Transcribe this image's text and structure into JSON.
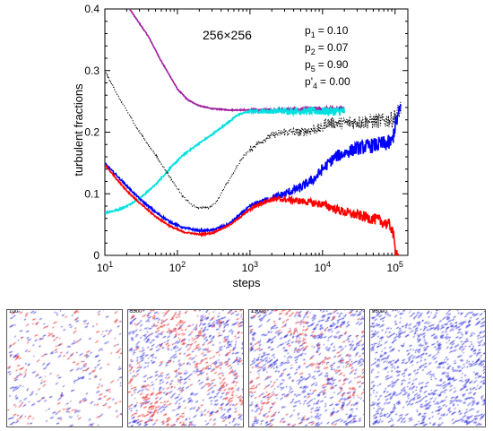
{
  "chart_data": {
    "type": "line",
    "xscale": "log",
    "xlim": [
      10,
      150000
    ],
    "ylim": [
      0,
      0.4
    ],
    "xlabel": "steps",
    "ylabel": "turbulent fractions",
    "x_ticks": [
      {
        "value": 10,
        "base": "10",
        "exp": "1"
      },
      {
        "value": 100,
        "base": "10",
        "exp": "2"
      },
      {
        "value": 1000,
        "base": "10",
        "exp": "3"
      },
      {
        "value": 10000,
        "base": "10",
        "exp": "4"
      },
      {
        "value": 100000,
        "base": "10",
        "exp": "5"
      }
    ],
    "y_ticks": [
      "0",
      "0.1",
      "0.2",
      "0.3",
      "0.4"
    ],
    "annotations": {
      "grid_size": "256×256",
      "params": [
        {
          "sym": "p",
          "sub": "1",
          "prime": "",
          "value": "= 0.10"
        },
        {
          "sym": "p",
          "sub": "2",
          "prime": "",
          "value": "= 0.07"
        },
        {
          "sym": "p",
          "sub": "5",
          "prime": "",
          "value": "= 0.90"
        },
        {
          "sym": "p",
          "sub": "4",
          "prime": "'",
          "value": "= 0.00"
        }
      ]
    },
    "series": [
      {
        "color": "#a020a0",
        "style": "solid",
        "noise": 0.002,
        "end": 20000,
        "x": [
          10,
          15,
          25,
          40,
          60,
          80,
          100,
          140,
          200,
          300,
          500,
          800,
          1500,
          3000,
          6000,
          10000,
          20000
        ],
        "y": [
          0.46,
          0.43,
          0.39,
          0.355,
          0.315,
          0.29,
          0.27,
          0.252,
          0.243,
          0.238,
          0.236,
          0.236,
          0.236,
          0.236,
          0.237,
          0.237,
          0.237
        ]
      },
      {
        "color": "#00e0e0",
        "style": "solid",
        "noise": 0.003,
        "end": 20000,
        "x": [
          10,
          15,
          20,
          30,
          50,
          80,
          120,
          200,
          300,
          500,
          700,
          1000,
          2000,
          5000,
          10000,
          20000
        ],
        "y": [
          0.069,
          0.074,
          0.08,
          0.092,
          0.115,
          0.142,
          0.163,
          0.182,
          0.196,
          0.216,
          0.229,
          0.234,
          0.234,
          0.234,
          0.234,
          0.234
        ]
      },
      {
        "color": "#000000",
        "style": "dotted",
        "noise": 0.004,
        "end": 120000,
        "x": [
          10,
          15,
          20,
          30,
          50,
          80,
          120,
          160,
          200,
          280,
          350,
          500,
          800,
          1200,
          2000,
          3000,
          5000,
          8000,
          10000,
          11000,
          20000,
          50000,
          90000,
          100000,
          120000
        ],
        "y": [
          0.3,
          0.26,
          0.235,
          0.2,
          0.163,
          0.126,
          0.095,
          0.081,
          0.077,
          0.078,
          0.088,
          0.12,
          0.16,
          0.18,
          0.195,
          0.2,
          0.2,
          0.205,
          0.206,
          0.215,
          0.215,
          0.218,
          0.22,
          0.225,
          0.24
        ]
      },
      {
        "color": "#0000ff",
        "style": "solid",
        "noise": 0.004,
        "end": 120000,
        "x": [
          10,
          15,
          20,
          30,
          50,
          80,
          120,
          200,
          300,
          500,
          800,
          1000,
          2000,
          3000,
          5000,
          8000,
          10000,
          15000,
          30000,
          60000,
          90000,
          100000,
          120000
        ],
        "y": [
          0.149,
          0.128,
          0.113,
          0.092,
          0.07,
          0.054,
          0.045,
          0.04,
          0.041,
          0.05,
          0.07,
          0.08,
          0.093,
          0.1,
          0.11,
          0.126,
          0.14,
          0.16,
          0.174,
          0.18,
          0.183,
          0.21,
          0.24
        ]
      },
      {
        "color": "#ff0000",
        "style": "solid",
        "noise": 0.003,
        "end": 110000,
        "x": [
          10,
          15,
          20,
          30,
          50,
          80,
          120,
          200,
          300,
          500,
          700,
          1000,
          1500,
          2000,
          3000,
          5000,
          10000,
          20000,
          40000,
          60000,
          80000,
          90000,
          95000,
          100000,
          110000
        ],
        "y": [
          0.147,
          0.122,
          0.105,
          0.085,
          0.063,
          0.047,
          0.038,
          0.034,
          0.036,
          0.048,
          0.06,
          0.075,
          0.086,
          0.091,
          0.091,
          0.088,
          0.083,
          0.07,
          0.062,
          0.057,
          0.05,
          0.045,
          0.03,
          0.01,
          0.0
        ]
      }
    ]
  },
  "snapshots": [
    {
      "label": "100",
      "blue": 0.12,
      "red": 0.12,
      "band": "diag-weak"
    },
    {
      "label": "5500",
      "blue": 0.3,
      "red": 0.28,
      "band": "diag-strong"
    },
    {
      "label": "13000",
      "blue": 0.36,
      "red": 0.18,
      "band": "diag-strong"
    },
    {
      "label": "96000",
      "blue": 0.42,
      "red": 0.0,
      "band": "none"
    }
  ]
}
